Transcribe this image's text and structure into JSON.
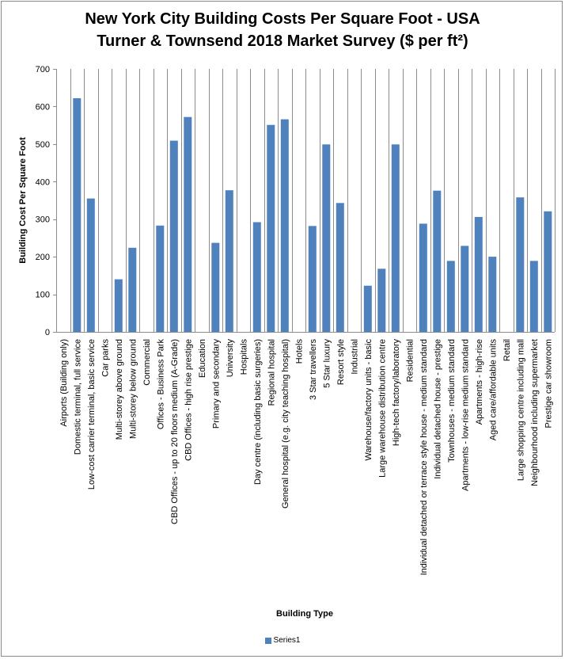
{
  "chart_data": {
    "type": "bar",
    "title_lines": [
      "New York City Building Costs Per Square Foot - USA",
      "Turner & Townsend 2018 Market Survey ($ per ft²)"
    ],
    "xlabel": "Building Type",
    "ylabel": "Building Cost Per Square Foot",
    "ylim": [
      0,
      700
    ],
    "yticks": [
      "0",
      "100",
      "200",
      "300",
      "400",
      "500",
      "600",
      "700"
    ],
    "grid": "vertical category lines",
    "legend_position": "bottom",
    "bar_color": "#4f81bd",
    "categories": [
      "Airports (Building only)",
      "Domestic terminal, full service",
      "Low-cost carrier terminal, basic service",
      "Car parks",
      "Multi-storey above ground",
      "Multi-storey below ground",
      "Commercial",
      "Offices - Business Park",
      "CBD Offices - up to 20 floors medium (A-Grade)",
      "CBD Offices - high rise prestige",
      "Education",
      "Primary and secondary",
      "University",
      "Hospitals",
      "Day centre (including basic surgeries)",
      "Regional hospital",
      "General hospital (e.g. city teaching hospital)",
      "Hotels",
      "3 Star travellers",
      "5 Star luxury",
      "Resort style",
      "Industrial",
      "Warehouse/factory units - basic",
      "Large warehouse distribution centre",
      "High-tech factory/laboratory",
      "Residential",
      "Individual detached or terrace style house - medium standard",
      "Individual detached house - prestige",
      "Townhouses - medium standard",
      "Apartments - low-rise medium standard",
      "Apartments - high-rise",
      "Aged care/affordable units",
      "Retail",
      "Large shopping centre including mall",
      "Neighbourhood including supermarket",
      "Prestige car showroom"
    ],
    "series": [
      {
        "name": "Series1",
        "values": [
          null,
          622,
          355,
          null,
          140,
          224,
          null,
          283,
          509,
          572,
          null,
          237,
          377,
          null,
          292,
          551,
          566,
          null,
          282,
          499,
          343,
          null,
          123,
          168,
          499,
          null,
          288,
          376,
          189,
          229,
          306,
          200,
          null,
          358,
          189,
          321
        ]
      }
    ]
  }
}
